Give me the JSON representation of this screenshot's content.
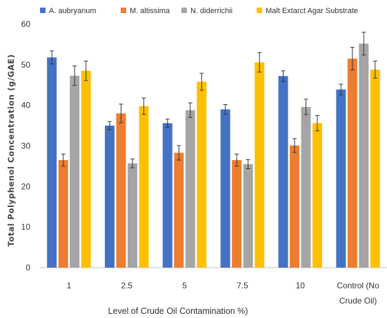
{
  "chart_data": {
    "type": "bar",
    "categories": [
      "1",
      "2.5",
      "5",
      "7.5",
      "10",
      "Control (No Crude Oil)"
    ],
    "category_lines": [
      [
        "1"
      ],
      [
        "2.5"
      ],
      [
        "5"
      ],
      [
        "7.5"
      ],
      [
        "10"
      ],
      [
        "Control (No",
        "Crude Oil)"
      ]
    ],
    "series": [
      {
        "name": "A. aubryanum",
        "color": "#4472C4",
        "values": [
          51.8,
          35.0,
          35.6,
          39.0,
          47.2,
          43.9
        ],
        "errors": [
          1.6,
          1.0,
          1.0,
          1.2,
          1.3,
          1.3
        ]
      },
      {
        "name": "M. altissima",
        "color": "#ED7D31",
        "values": [
          26.5,
          38.0,
          28.3,
          26.5,
          30.1,
          51.5
        ],
        "errors": [
          1.5,
          2.3,
          1.8,
          1.5,
          1.7,
          2.8
        ]
      },
      {
        "name": "N. diderrichii",
        "color": "#A5A5A5",
        "values": [
          47.3,
          25.7,
          38.8,
          25.5,
          39.6,
          55.2
        ],
        "errors": [
          2.4,
          1.1,
          1.8,
          1.1,
          1.9,
          2.8
        ]
      },
      {
        "name": "Malt Extarct Agar Substrate",
        "color": "#FFC000",
        "values": [
          48.5,
          39.8,
          45.8,
          50.6,
          35.6,
          48.8
        ],
        "errors": [
          2.4,
          2.0,
          2.1,
          2.4,
          1.9,
          2.1
        ]
      }
    ],
    "xlabel": "Level of Crude Oil Contamination %)",
    "ylabel": "Total Polyphenol Concentration (g/GAE)",
    "ylim": [
      0,
      60
    ],
    "yticks": [
      0,
      10,
      20,
      30,
      40,
      50,
      60
    ],
    "grid": false,
    "legend_position": "top"
  }
}
